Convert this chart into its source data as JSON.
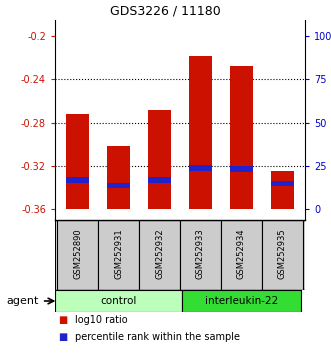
{
  "title": "GDS3226 / 11180",
  "samples": [
    "GSM252890",
    "GSM252931",
    "GSM252932",
    "GSM252933",
    "GSM252934",
    "GSM252935"
  ],
  "bar_bottom": -0.36,
  "bar_tops": [
    -0.272,
    -0.302,
    -0.268,
    -0.218,
    -0.228,
    -0.325
  ],
  "percentile_positions": [
    -0.333,
    -0.338,
    -0.333,
    -0.322,
    -0.323,
    -0.336
  ],
  "bar_color": "#cc1100",
  "blue_color": "#2222cc",
  "ylim_left": [
    -0.37,
    -0.185
  ],
  "yticks_left": [
    -0.36,
    -0.32,
    -0.28,
    -0.24,
    -0.2
  ],
  "ytick_labels_left": [
    "-0.36",
    "-0.32",
    "-0.28",
    "-0.24",
    "-0.2"
  ],
  "yticks_right_positions": [
    -0.36,
    -0.32,
    -0.28,
    -0.24,
    -0.2
  ],
  "ytick_labels_right": [
    "0",
    "25",
    "50",
    "75",
    "100%"
  ],
  "grid_values": [
    -0.24,
    -0.28,
    -0.32
  ],
  "left_axis_color": "#cc1100",
  "right_axis_color": "#0000cc",
  "label_bg_color": "#cccccc",
  "control_color": "#bbffbb",
  "il22_color": "#33dd33",
  "control_name": "control",
  "il22_name": "interleukin-22",
  "agent_label": "agent",
  "legend_red_label": "log10 ratio",
  "legend_blue_label": "percentile rank within the sample"
}
